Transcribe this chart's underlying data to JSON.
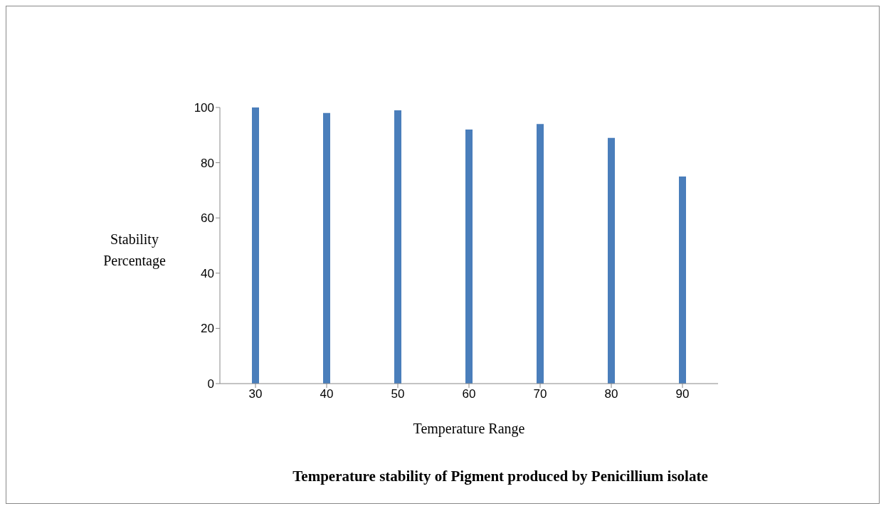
{
  "chart_data": {
    "type": "bar",
    "title": "Temperature stability of Pigment produced by Penicillium isolate",
    "categories": [
      "30",
      "40",
      "50",
      "60",
      "70",
      "80",
      "90"
    ],
    "values": [
      100,
      98,
      99,
      92,
      94,
      89,
      75
    ],
    "color": "#4a7ebb",
    "xlabel": "Temperature Range",
    "ylabel": "Stability Percentage",
    "ylim": [
      0,
      100
    ],
    "yticks": [
      0,
      20,
      40,
      60,
      80,
      100
    ],
    "grid": false,
    "legend": false
  }
}
